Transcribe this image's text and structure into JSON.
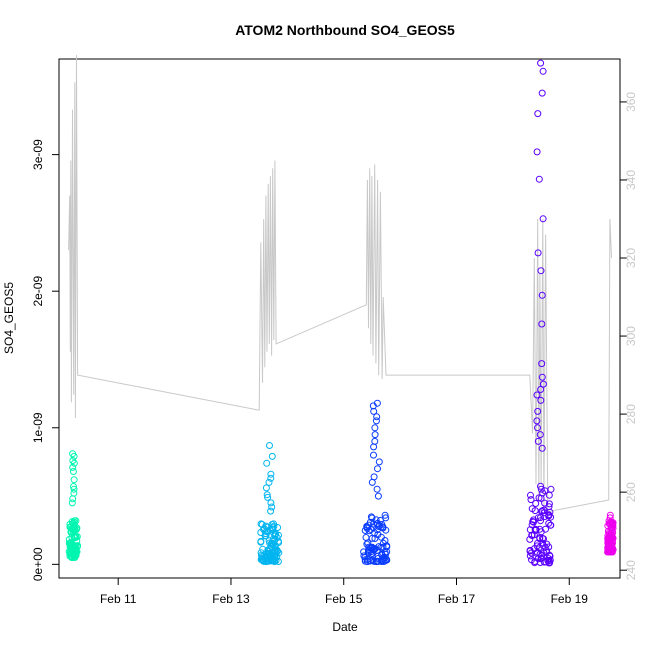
{
  "chart_data": {
    "type": "scatter",
    "title": "ATOM2 Northbound SO4_GEOS5",
    "xlabel": "Date",
    "ylabel": "SO4_GEOS5",
    "x_range_days_feb": [
      9.95,
      19.9
    ],
    "ylim": [
      -1e-10,
      3.7e-09
    ],
    "y2lim": [
      238,
      371
    ],
    "x_ticks": [
      {
        "day": 11,
        "label": "Feb 11"
      },
      {
        "day": 13,
        "label": "Feb 13"
      },
      {
        "day": 15,
        "label": "Feb 15"
      },
      {
        "day": 17,
        "label": "Feb 17"
      },
      {
        "day": 19,
        "label": "Feb 19"
      }
    ],
    "y_ticks": [
      {
        "value": 0,
        "label": "0e+00"
      },
      {
        "value": 1e-09,
        "label": "1e-09"
      },
      {
        "value": 2e-09,
        "label": "2e-09"
      },
      {
        "value": 3e-09,
        "label": "3e-09"
      }
    ],
    "y2_ticks": [
      {
        "value": 240,
        "label": "240"
      },
      {
        "value": 260,
        "label": "260"
      },
      {
        "value": 280,
        "label": "280"
      },
      {
        "value": 300,
        "label": "300"
      },
      {
        "value": 320,
        "label": "320"
      },
      {
        "value": 340,
        "label": "340"
      },
      {
        "value": 360,
        "label": "360"
      }
    ],
    "grid": false,
    "legend": "none",
    "line_color": "#c8c8c8",
    "series": [
      {
        "color": "#00f5b0",
        "x_start": 10.13,
        "x_end": 10.28,
        "y_min": 5e-11,
        "y_max": 8.2e-10,
        "dense_max": 3.2e-10,
        "outliers": [
          8.1e-10,
          7.9e-10,
          7.6e-10,
          7.4e-10,
          7.1e-10,
          6.8e-10,
          6.2e-10,
          5.7e-10,
          5.5e-10,
          5.2e-10,
          4.8e-10,
          4.5e-10
        ]
      },
      {
        "color": "#00b4f0",
        "x_start": 13.52,
        "x_end": 13.85,
        "y_min": 2e-11,
        "y_max": 8.8e-10,
        "dense_max": 3e-10,
        "outliers": [
          8.7e-10,
          7.9e-10,
          7.4e-10,
          6.6e-10,
          6.3e-10,
          6e-10,
          5.6e-10,
          5.1e-10,
          4.9e-10,
          4.5e-10,
          4.2e-10,
          3.9e-10
        ]
      },
      {
        "color": "#0a3cff",
        "x_start": 15.35,
        "x_end": 15.78,
        "y_min": 2e-11,
        "y_max": 1.18e-09,
        "dense_max": 3.6e-10,
        "outliers": [
          1.18e-09,
          1.16e-09,
          1.12e-09,
          1.08e-09,
          1.05e-09,
          1e-09,
          9.5e-10,
          9e-10,
          8.6e-10,
          8e-10,
          7.5e-10,
          7e-10,
          6.4e-10,
          6e-10,
          5.5e-10,
          5e-10
        ]
      },
      {
        "color": "#5a00ff",
        "x_start": 18.3,
        "x_end": 18.68,
        "y_min": 1e-11,
        "y_max": 3.67e-09,
        "dense_max": 5.8e-10,
        "outliers": [
          3.67e-09,
          3.61e-09,
          3.45e-09,
          3.3e-09,
          3.02e-09,
          2.82e-09,
          2.53e-09,
          2.28e-09,
          2.15e-09,
          1.97e-09,
          1.76e-09,
          1.47e-09,
          1.37e-09,
          1.32e-09,
          1.28e-09,
          1.24e-09,
          1.2e-09,
          1.12e-09,
          1.05e-09,
          1e-09,
          9.5e-10,
          9e-10,
          8.5e-10
        ]
      },
      {
        "color": "#ee00ee",
        "x_start": 19.68,
        "x_end": 19.78,
        "y_min": 9e-11,
        "y_max": 3.7e-10,
        "dense_max": 3.2e-10,
        "outliers": [
          3.6e-10,
          3.4e-10
        ]
      }
    ],
    "secondary_line": [
      [
        10.12,
        322
      ],
      [
        10.14,
        336
      ],
      [
        10.15,
        296
      ],
      [
        10.16,
        345
      ],
      [
        10.17,
        283
      ],
      [
        10.19,
        358
      ],
      [
        10.21,
        285
      ],
      [
        10.23,
        365
      ],
      [
        10.24,
        279
      ],
      [
        10.26,
        372
      ],
      [
        10.28,
        290
      ],
      [
        13.5,
        281
      ],
      [
        13.53,
        324
      ],
      [
        13.56,
        288
      ],
      [
        13.58,
        330
      ],
      [
        13.6,
        292
      ],
      [
        13.62,
        336
      ],
      [
        13.64,
        296
      ],
      [
        13.66,
        339
      ],
      [
        13.68,
        298
      ],
      [
        13.7,
        341
      ],
      [
        13.72,
        295
      ],
      [
        13.74,
        343
      ],
      [
        13.76,
        299
      ],
      [
        13.78,
        345
      ],
      [
        13.8,
        298
      ],
      [
        15.4,
        308
      ],
      [
        15.42,
        340
      ],
      [
        15.44,
        302
      ],
      [
        15.46,
        343
      ],
      [
        15.48,
        298
      ],
      [
        15.5,
        341
      ],
      [
        15.52,
        295
      ],
      [
        15.55,
        344
      ],
      [
        15.57,
        293
      ],
      [
        15.6,
        340
      ],
      [
        15.62,
        290
      ],
      [
        15.65,
        337
      ],
      [
        15.68,
        289
      ],
      [
        15.7,
        310
      ],
      [
        15.75,
        290
      ],
      [
        18.3,
        290
      ],
      [
        18.35,
        275
      ],
      [
        18.38,
        320
      ],
      [
        18.41,
        262
      ],
      [
        18.44,
        330
      ],
      [
        18.46,
        258
      ],
      [
        18.48,
        316
      ],
      [
        18.5,
        262
      ],
      [
        18.53,
        330
      ],
      [
        18.55,
        256
      ],
      [
        18.58,
        326
      ],
      [
        18.62,
        255
      ],
      [
        19.7,
        258
      ],
      [
        19.72,
        330
      ],
      [
        19.75,
        320
      ]
    ]
  }
}
